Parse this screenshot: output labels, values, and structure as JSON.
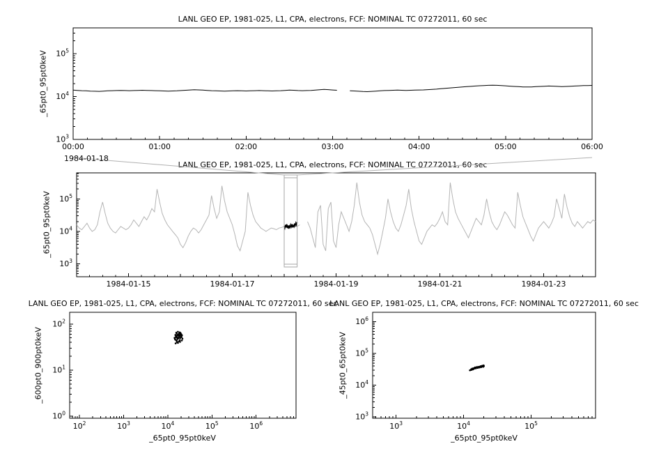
{
  "chart_data": [
    {
      "id": "top",
      "type": "line",
      "title": "LANL GEO EP, 1981-025, L1, CPA, electrons, FCF: NOMINAL TC 07272011, 60 sec",
      "ylabel": "_65pt0_95pt0keV",
      "x_axis": {
        "kind": "linear",
        "unit": "hours from 1984-01-18 00:00",
        "min": 0,
        "max": 6,
        "minor_step": 0.16667,
        "major_ticks": [
          {
            "v": 0,
            "label": "00:00"
          },
          {
            "v": 1,
            "label": "01:00"
          },
          {
            "v": 2,
            "label": "02:00"
          },
          {
            "v": 3,
            "label": "03:00"
          },
          {
            "v": 4,
            "label": "04:00"
          },
          {
            "v": 5,
            "label": "05:00"
          },
          {
            "v": 6,
            "label": "06:00"
          }
        ],
        "corner_label": "1984-01-18"
      },
      "y_axis": {
        "kind": "log",
        "min": 1000,
        "max": 400000,
        "label_exponents": [
          3,
          4,
          5
        ]
      },
      "series": [
        {
          "name": "electron flux 65.0-95.0 keV",
          "color": "#000000",
          "width": 1,
          "x_start": 0,
          "x_step": 0.05,
          "y": [
            14100,
            13900,
            13700,
            13600,
            13400,
            13300,
            13200,
            13400,
            13600,
            13700,
            13800,
            13900,
            13800,
            13700,
            13800,
            13900,
            14000,
            13900,
            13800,
            13700,
            13600,
            13500,
            13400,
            13500,
            13600,
            13800,
            14000,
            14200,
            14400,
            14300,
            14100,
            13900,
            13700,
            13600,
            13500,
            13400,
            13500,
            13600,
            13700,
            13600,
            13500,
            13600,
            13700,
            13800,
            13700,
            13600,
            13500,
            13600,
            13700,
            13900,
            14100,
            14000,
            13800,
            13700,
            13800,
            13900,
            14100,
            14400,
            14700,
            14500,
            14200,
            14000,
            null,
            null,
            13600,
            13500,
            13300,
            13100,
            13000,
            13200,
            13400,
            13600,
            13800,
            13900,
            14000,
            14100,
            14000,
            13900,
            14000,
            14100,
            14200,
            14300,
            14500,
            14700,
            14900,
            15200,
            15500,
            15800,
            16100,
            16400,
            16700,
            17000,
            17300,
            17600,
            17900,
            18100,
            18300,
            18400,
            18300,
            18100,
            17800,
            17500,
            17200,
            17000,
            16800,
            16700,
            16800,
            17000,
            17200,
            17400,
            17600,
            17500,
            17300,
            17100,
            17200,
            17400,
            17600,
            17800,
            18000,
            18100,
            18200
          ]
        }
      ]
    },
    {
      "id": "context",
      "type": "line",
      "title": "LANL GEO EP, 1981-025, L1, CPA, electrons, FCF: NOMINAL TC 07272011, 60 sec",
      "ylabel": "_65pt0_95pt0keV",
      "x_axis": {
        "kind": "linear",
        "unit": "days from 1984-01-14 00:00",
        "min": 0,
        "max": 10,
        "minor_step": 0.25,
        "medium_step": 1,
        "major_ticks": [
          {
            "v": 1,
            "label": "1984-01-15"
          },
          {
            "v": 3,
            "label": "1984-01-17"
          },
          {
            "v": 5,
            "label": "1984-01-19"
          },
          {
            "v": 7,
            "label": "1984-01-21"
          },
          {
            "v": 9,
            "label": "1984-01-23"
          }
        ]
      },
      "y_axis": {
        "kind": "log",
        "min": 400,
        "max": 630000,
        "label_exponents": [
          3,
          4,
          5
        ]
      },
      "zoom_box": {
        "x_start": 4.0,
        "x_end": 4.25,
        "color": "#a6a6a6"
      },
      "series": [
        {
          "name": "context flux 65.0-95.0 keV",
          "color": "#b4b4b4",
          "width": 1,
          "x_start": 0,
          "x_step": 0.05,
          "y_encoding": "log10",
          "y": [
            4.2,
            4.1,
            4.05,
            4.15,
            4.25,
            4.1,
            4.0,
            4.05,
            4.2,
            4.6,
            4.9,
            4.55,
            4.25,
            4.1,
            4.0,
            3.95,
            4.05,
            4.15,
            4.1,
            4.05,
            4.1,
            4.2,
            4.35,
            4.25,
            4.15,
            4.3,
            4.45,
            4.35,
            4.5,
            4.7,
            4.6,
            5.3,
            4.9,
            4.55,
            4.35,
            4.2,
            4.1,
            4.0,
            3.9,
            3.8,
            3.6,
            3.5,
            3.65,
            3.85,
            4.0,
            4.1,
            4.05,
            3.95,
            4.05,
            4.2,
            4.35,
            4.5,
            5.1,
            4.7,
            4.4,
            4.6,
            5.4,
            4.95,
            4.6,
            4.4,
            4.2,
            3.9,
            3.55,
            3.4,
            3.7,
            4.0,
            5.2,
            4.8,
            4.5,
            4.3,
            4.2,
            4.1,
            4.05,
            4.0,
            4.05,
            4.1,
            4.08,
            4.05,
            4.1,
            4.12,
            4.15,
            4.12,
            4.18,
            4.14,
            4.16,
            4.15,
            4.2,
            null,
            null,
            4.3,
            4.1,
            3.8,
            3.5,
            4.6,
            4.8,
            3.6,
            3.4,
            4.7,
            4.9,
            3.7,
            3.5,
            4.2,
            4.6,
            4.4,
            4.2,
            4.0,
            4.3,
            4.8,
            5.5,
            4.9,
            4.5,
            4.3,
            4.2,
            4.1,
            3.9,
            3.6,
            3.3,
            3.6,
            4.0,
            4.4,
            5.0,
            4.6,
            4.3,
            4.1,
            4.0,
            4.2,
            4.5,
            4.8,
            5.3,
            4.7,
            4.3,
            4.0,
            3.7,
            3.6,
            3.8,
            4.0,
            4.1,
            4.2,
            4.15,
            4.25,
            4.4,
            4.6,
            4.3,
            4.2,
            5.5,
            5.0,
            4.6,
            4.4,
            4.25,
            4.1,
            3.95,
            3.8,
            4.0,
            4.2,
            4.4,
            4.3,
            4.2,
            4.5,
            5.0,
            4.6,
            4.3,
            4.15,
            4.05,
            4.2,
            4.4,
            4.6,
            4.5,
            4.35,
            4.2,
            4.1,
            5.2,
            4.8,
            4.45,
            4.25,
            4.05,
            3.85,
            3.7,
            3.9,
            4.1,
            4.2,
            4.3,
            4.2,
            4.1,
            4.25,
            4.45,
            5.0,
            4.7,
            4.4,
            5.15,
            4.75,
            4.45,
            4.25,
            4.15,
            4.3,
            4.2,
            4.1,
            4.2,
            4.3,
            4.25,
            4.35,
            4.3
          ]
        },
        {
          "name": "highlighted interval 1984-01-18 00:00 to 06:00",
          "color": "#000000",
          "width": 1.6,
          "x_start": 4.0,
          "x_step": 0.0125,
          "y_encoding": "log10",
          "y": [
            4.16,
            4.1,
            4.2,
            4.12,
            4.22,
            4.1,
            4.18,
            4.08,
            4.16,
            4.12,
            4.2,
            4.14,
            4.22,
            4.12,
            4.18,
            4.14,
            4.24,
            4.18,
            4.26,
            4.2,
            4.28
          ]
        }
      ]
    },
    {
      "id": "scatter-left",
      "type": "scatter",
      "title": "LANL GEO EP, 1981-025, L1, CPA, electrons, FCF: NOMINAL TC 07272011, 60 sec",
      "xlabel": "_65pt0_95pt0keV",
      "ylabel": "_600pt0_900pt0keV",
      "x_axis": {
        "kind": "log",
        "min": 60,
        "max": 8000000,
        "label_exponents": [
          2,
          3,
          4,
          5,
          6
        ]
      },
      "y_axis": {
        "kind": "log",
        "min": 0.9,
        "max": 180,
        "label_exponents": [
          0,
          1,
          2
        ]
      },
      "series": [
        {
          "name": "600-900 keV vs 65-95 keV",
          "color": "#000000",
          "points": [
            [
              14500,
              48
            ],
            [
              15200,
              52
            ],
            [
              16000,
              55
            ],
            [
              16800,
              50
            ],
            [
              15500,
              44
            ],
            [
              14800,
              58
            ],
            [
              17200,
              60
            ],
            [
              18000,
              53
            ],
            [
              16500,
              47
            ],
            [
              15800,
              62
            ],
            [
              17500,
              56
            ],
            [
              18500,
              58
            ],
            [
              19200,
              50
            ],
            [
              20000,
              54
            ],
            [
              21000,
              57
            ],
            [
              19500,
              61
            ],
            [
              18800,
              45
            ],
            [
              17800,
              42
            ],
            [
              16200,
              40
            ],
            [
              15000,
              38
            ],
            [
              14200,
              50
            ],
            [
              15600,
              65
            ],
            [
              16900,
              68
            ],
            [
              18200,
              63
            ],
            [
              19800,
              59
            ],
            [
              20500,
              52
            ],
            [
              21500,
              48
            ],
            [
              20800,
              44
            ],
            [
              19000,
              41
            ],
            [
              17000,
              39
            ],
            [
              16400,
              57
            ],
            [
              15300,
              55
            ],
            [
              14700,
              46
            ],
            [
              18600,
              66
            ],
            [
              19400,
              64
            ],
            [
              20200,
              60
            ],
            [
              17600,
              49
            ],
            [
              16100,
              51
            ],
            [
              15900,
              43
            ],
            [
              18900,
              56
            ]
          ]
        }
      ]
    },
    {
      "id": "scatter-right",
      "type": "scatter",
      "title": "LANL GEO EP, 1981-025, L1, CPA, electrons, FCF: NOMINAL TC 07272011, 60 sec",
      "xlabel": "_65pt0_95pt0keV",
      "ylabel": "_45pt0_65pt0keV",
      "x_axis": {
        "kind": "log",
        "min": 450,
        "max": 900000,
        "label_exponents": [
          3,
          4,
          5
        ]
      },
      "y_axis": {
        "kind": "log",
        "min": 900,
        "max": 2000000,
        "label_exponents": [
          3,
          4,
          5,
          6
        ]
      },
      "series": [
        {
          "name": "45-65 keV vs 65-95 keV",
          "color": "#000000",
          "points": [
            [
              13000,
              32000
            ],
            [
              13500,
              33500
            ],
            [
              14000,
              34000
            ],
            [
              14500,
              35000
            ],
            [
              15000,
              34500
            ],
            [
              15500,
              36000
            ],
            [
              16000,
              35500
            ],
            [
              16500,
              37000
            ],
            [
              17000,
              36500
            ],
            [
              17500,
              38000
            ],
            [
              18000,
              37500
            ],
            [
              18500,
              38500
            ],
            [
              19000,
              39000
            ],
            [
              19500,
              38000
            ],
            [
              20000,
              40000
            ],
            [
              14200,
              33000
            ],
            [
              14800,
              36500
            ],
            [
              15200,
              34000
            ],
            [
              15800,
              37500
            ],
            [
              16200,
              35000
            ],
            [
              16800,
              38000
            ],
            [
              17200,
              36000
            ],
            [
              17800,
              39500
            ],
            [
              18200,
              37000
            ],
            [
              18800,
              40500
            ],
            [
              13800,
              31500
            ],
            [
              13200,
              30500
            ],
            [
              12800,
              30000
            ],
            [
              12400,
              29500
            ],
            [
              15400,
              35500
            ],
            [
              16400,
              36800
            ],
            [
              17400,
              37800
            ],
            [
              18400,
              39800
            ],
            [
              19200,
              41000
            ],
            [
              19800,
              42000
            ],
            [
              14600,
              33800
            ],
            [
              15600,
              36200
            ],
            [
              16600,
              37400
            ],
            [
              17600,
              38600
            ],
            [
              18600,
              40200
            ]
          ]
        }
      ]
    }
  ]
}
